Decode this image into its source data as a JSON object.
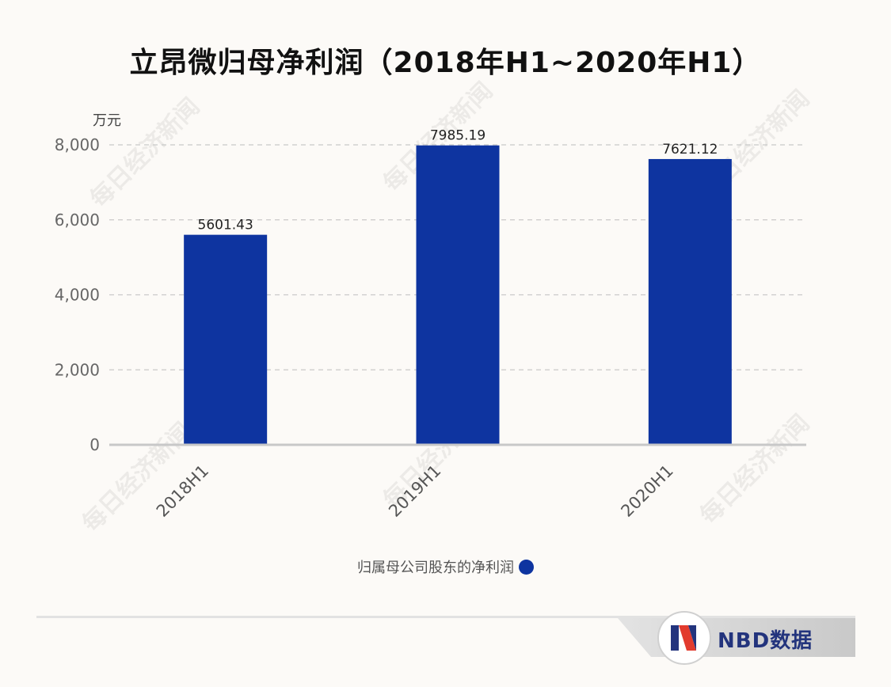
{
  "title": "立昂微归母净利润（2018年H1~2020年H1）",
  "unit": "万元",
  "colors": {
    "bar": "#0e34a0",
    "background": "#fcfaf7"
  },
  "watermark_text": "每日经济新闻",
  "chart_data": {
    "type": "bar",
    "title": "立昂微归母净利润（2018年H1~2020年H1）",
    "categories": [
      "2018H1",
      "2019H1",
      "2020H1"
    ],
    "series": [
      {
        "name": "归属母公司股东的净利润",
        "values": [
          5601.43,
          7985.19,
          7621.12
        ]
      }
    ],
    "value_labels": [
      "5601.43",
      "7985.19",
      "7621.12"
    ],
    "ylabel": "万元",
    "ylim": [
      0,
      8000
    ],
    "yticks": [
      0,
      2000,
      4000,
      6000,
      8000
    ],
    "ytick_labels": [
      "0",
      "2,000",
      "4,000",
      "6,000",
      "8,000"
    ],
    "grid": true,
    "legend_position": "bottom"
  },
  "legend": {
    "label": "归属母公司股东的净利润"
  },
  "brand": {
    "text": "NBD数据"
  }
}
